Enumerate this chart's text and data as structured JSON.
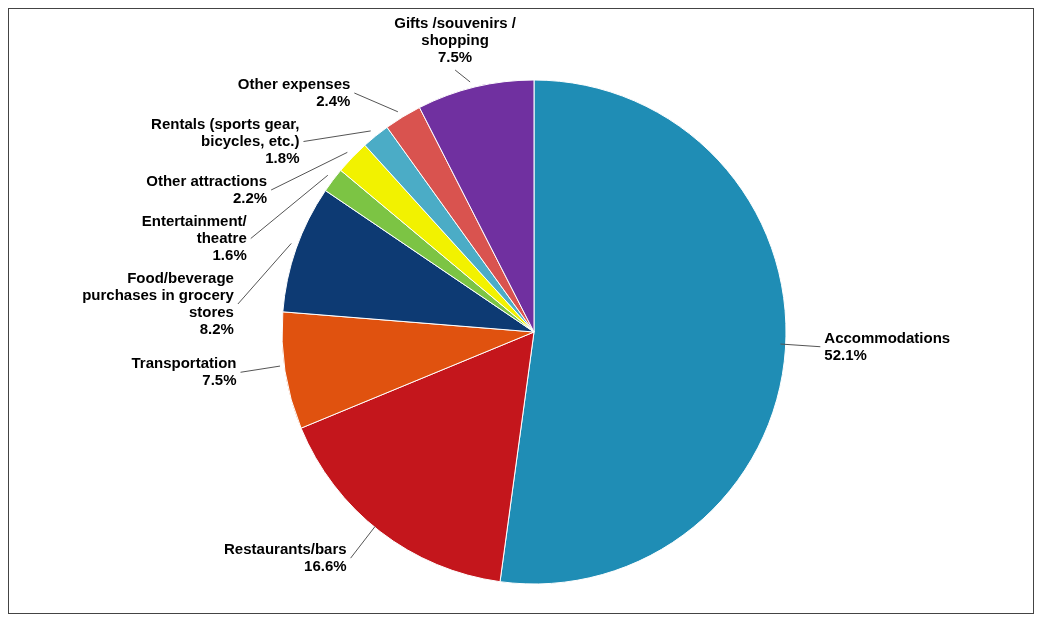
{
  "chart_data": {
    "type": "pie",
    "categories": [
      "Accommodations",
      "Restaurants/bars",
      "Transportation",
      "Food/beverage purchases in grocery stores",
      "Entertainment/ theatre",
      "Other attractions",
      "Rentals (sports gear, bicycles, etc.)",
      "Other expenses",
      "Gifts /souvenirs / shopping"
    ],
    "values": [
      52.1,
      16.6,
      7.5,
      8.2,
      1.6,
      2.2,
      1.8,
      2.4,
      7.5
    ],
    "value_labels": [
      "52.1%",
      "16.6%",
      "7.5%",
      "8.2%",
      "1.6%",
      "2.2%",
      "1.8%",
      "2.4%",
      "7.5%"
    ],
    "colors": [
      "#1f8db5",
      "#c4161c",
      "#e0520f",
      "#0d3a73",
      "#7cc444",
      "#f2f200",
      "#4bacc6",
      "#d9534f",
      "#7030a0"
    ]
  }
}
